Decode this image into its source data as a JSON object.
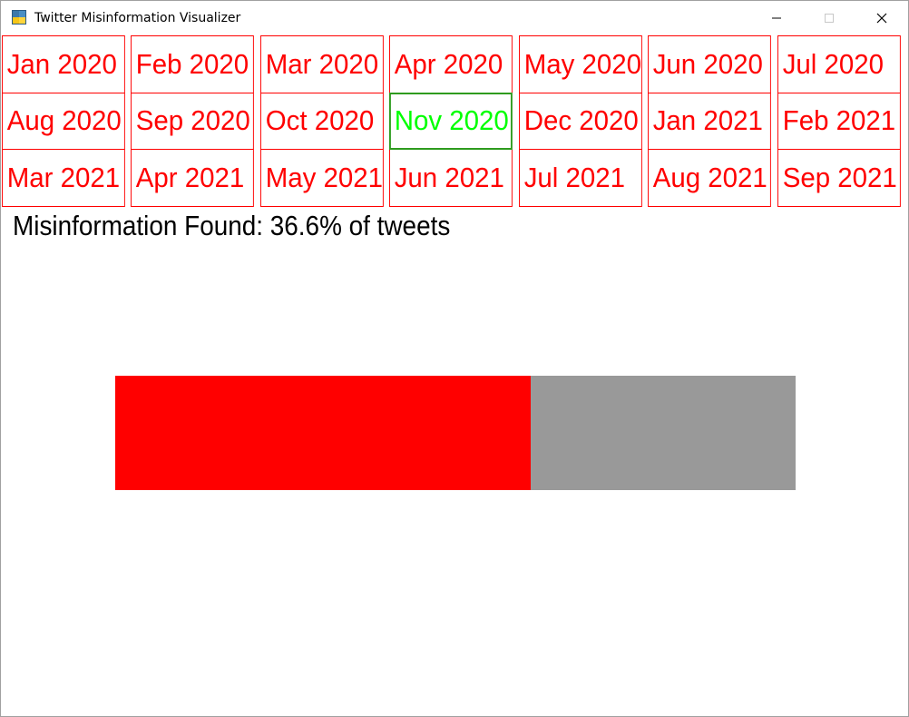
{
  "window": {
    "title": "Twitter Misinformation Visualizer",
    "controls": {
      "minimize_icon": "minimize-icon",
      "maximize_icon": "maximize-icon",
      "close_icon": "close-icon"
    }
  },
  "months": [
    {
      "label": "Jan 2020",
      "selected": false
    },
    {
      "label": "Feb 2020",
      "selected": false
    },
    {
      "label": "Mar 2020",
      "selected": false
    },
    {
      "label": "Apr 2020",
      "selected": false
    },
    {
      "label": "May 2020",
      "selected": false
    },
    {
      "label": "Jun 2020",
      "selected": false
    },
    {
      "label": "Jul 2020",
      "selected": false
    },
    {
      "label": "Aug 2020",
      "selected": false
    },
    {
      "label": "Sep 2020",
      "selected": false
    },
    {
      "label": "Oct 2020",
      "selected": false
    },
    {
      "label": "Nov 2020",
      "selected": true
    },
    {
      "label": "Dec 2020",
      "selected": false
    },
    {
      "label": "Jan 2021",
      "selected": false
    },
    {
      "label": "Feb 2021",
      "selected": false
    },
    {
      "label": "Mar 2021",
      "selected": false
    },
    {
      "label": "Apr 2021",
      "selected": false
    },
    {
      "label": "May 2021",
      "selected": false
    },
    {
      "label": "Jun 2021",
      "selected": false
    },
    {
      "label": "Jul 2021",
      "selected": false
    },
    {
      "label": "Aug 2021",
      "selected": false
    },
    {
      "label": "Sep 2021",
      "selected": false
    }
  ],
  "status": {
    "text": "Misinformation Found: 36.6% of tweets"
  },
  "bar": {
    "fill_fraction": 0.61,
    "fill_color": "#ff0000",
    "track_color": "#999999"
  },
  "colors": {
    "month_text": "#ff0000",
    "month_border": "#ff0000",
    "selected_text": "#00ff00",
    "selected_border": "#2e9b1e"
  }
}
